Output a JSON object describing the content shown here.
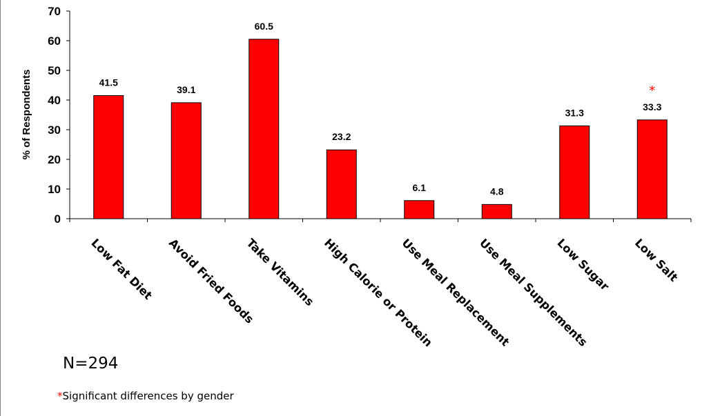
{
  "chart_data": {
    "type": "bar",
    "categories": [
      "Low Fat Diet",
      "Avoid Fried Foods",
      "Take Vitamins",
      "High Calorie or Protein",
      "Use Meal Replacement",
      "Use Meal Supplements",
      "Low Sugar",
      "Low Salt"
    ],
    "values": [
      41.5,
      39.1,
      60.5,
      23.2,
      6.1,
      4.8,
      31.3,
      33.3
    ],
    "value_labels": [
      "41.5",
      "39.1",
      "60.5",
      "23.2",
      "6.1",
      "4.8",
      "31.3",
      "33.3"
    ],
    "significant": [
      false,
      false,
      false,
      false,
      false,
      false,
      false,
      true
    ],
    "significance_marker": "*",
    "ylabel": "% of Respondents",
    "xlabel": "",
    "title": "",
    "ylim": [
      0,
      70
    ],
    "yticks": [
      "0",
      "10",
      "20",
      "30",
      "40",
      "50",
      "60",
      "70"
    ],
    "bar_color": "#ff0000",
    "marker_color": "#ff0000",
    "grid": false,
    "legend": "none"
  },
  "notes": {
    "sample_size": "N=294",
    "significance_marker": "*",
    "significance_text": "Significant differences by gender"
  }
}
